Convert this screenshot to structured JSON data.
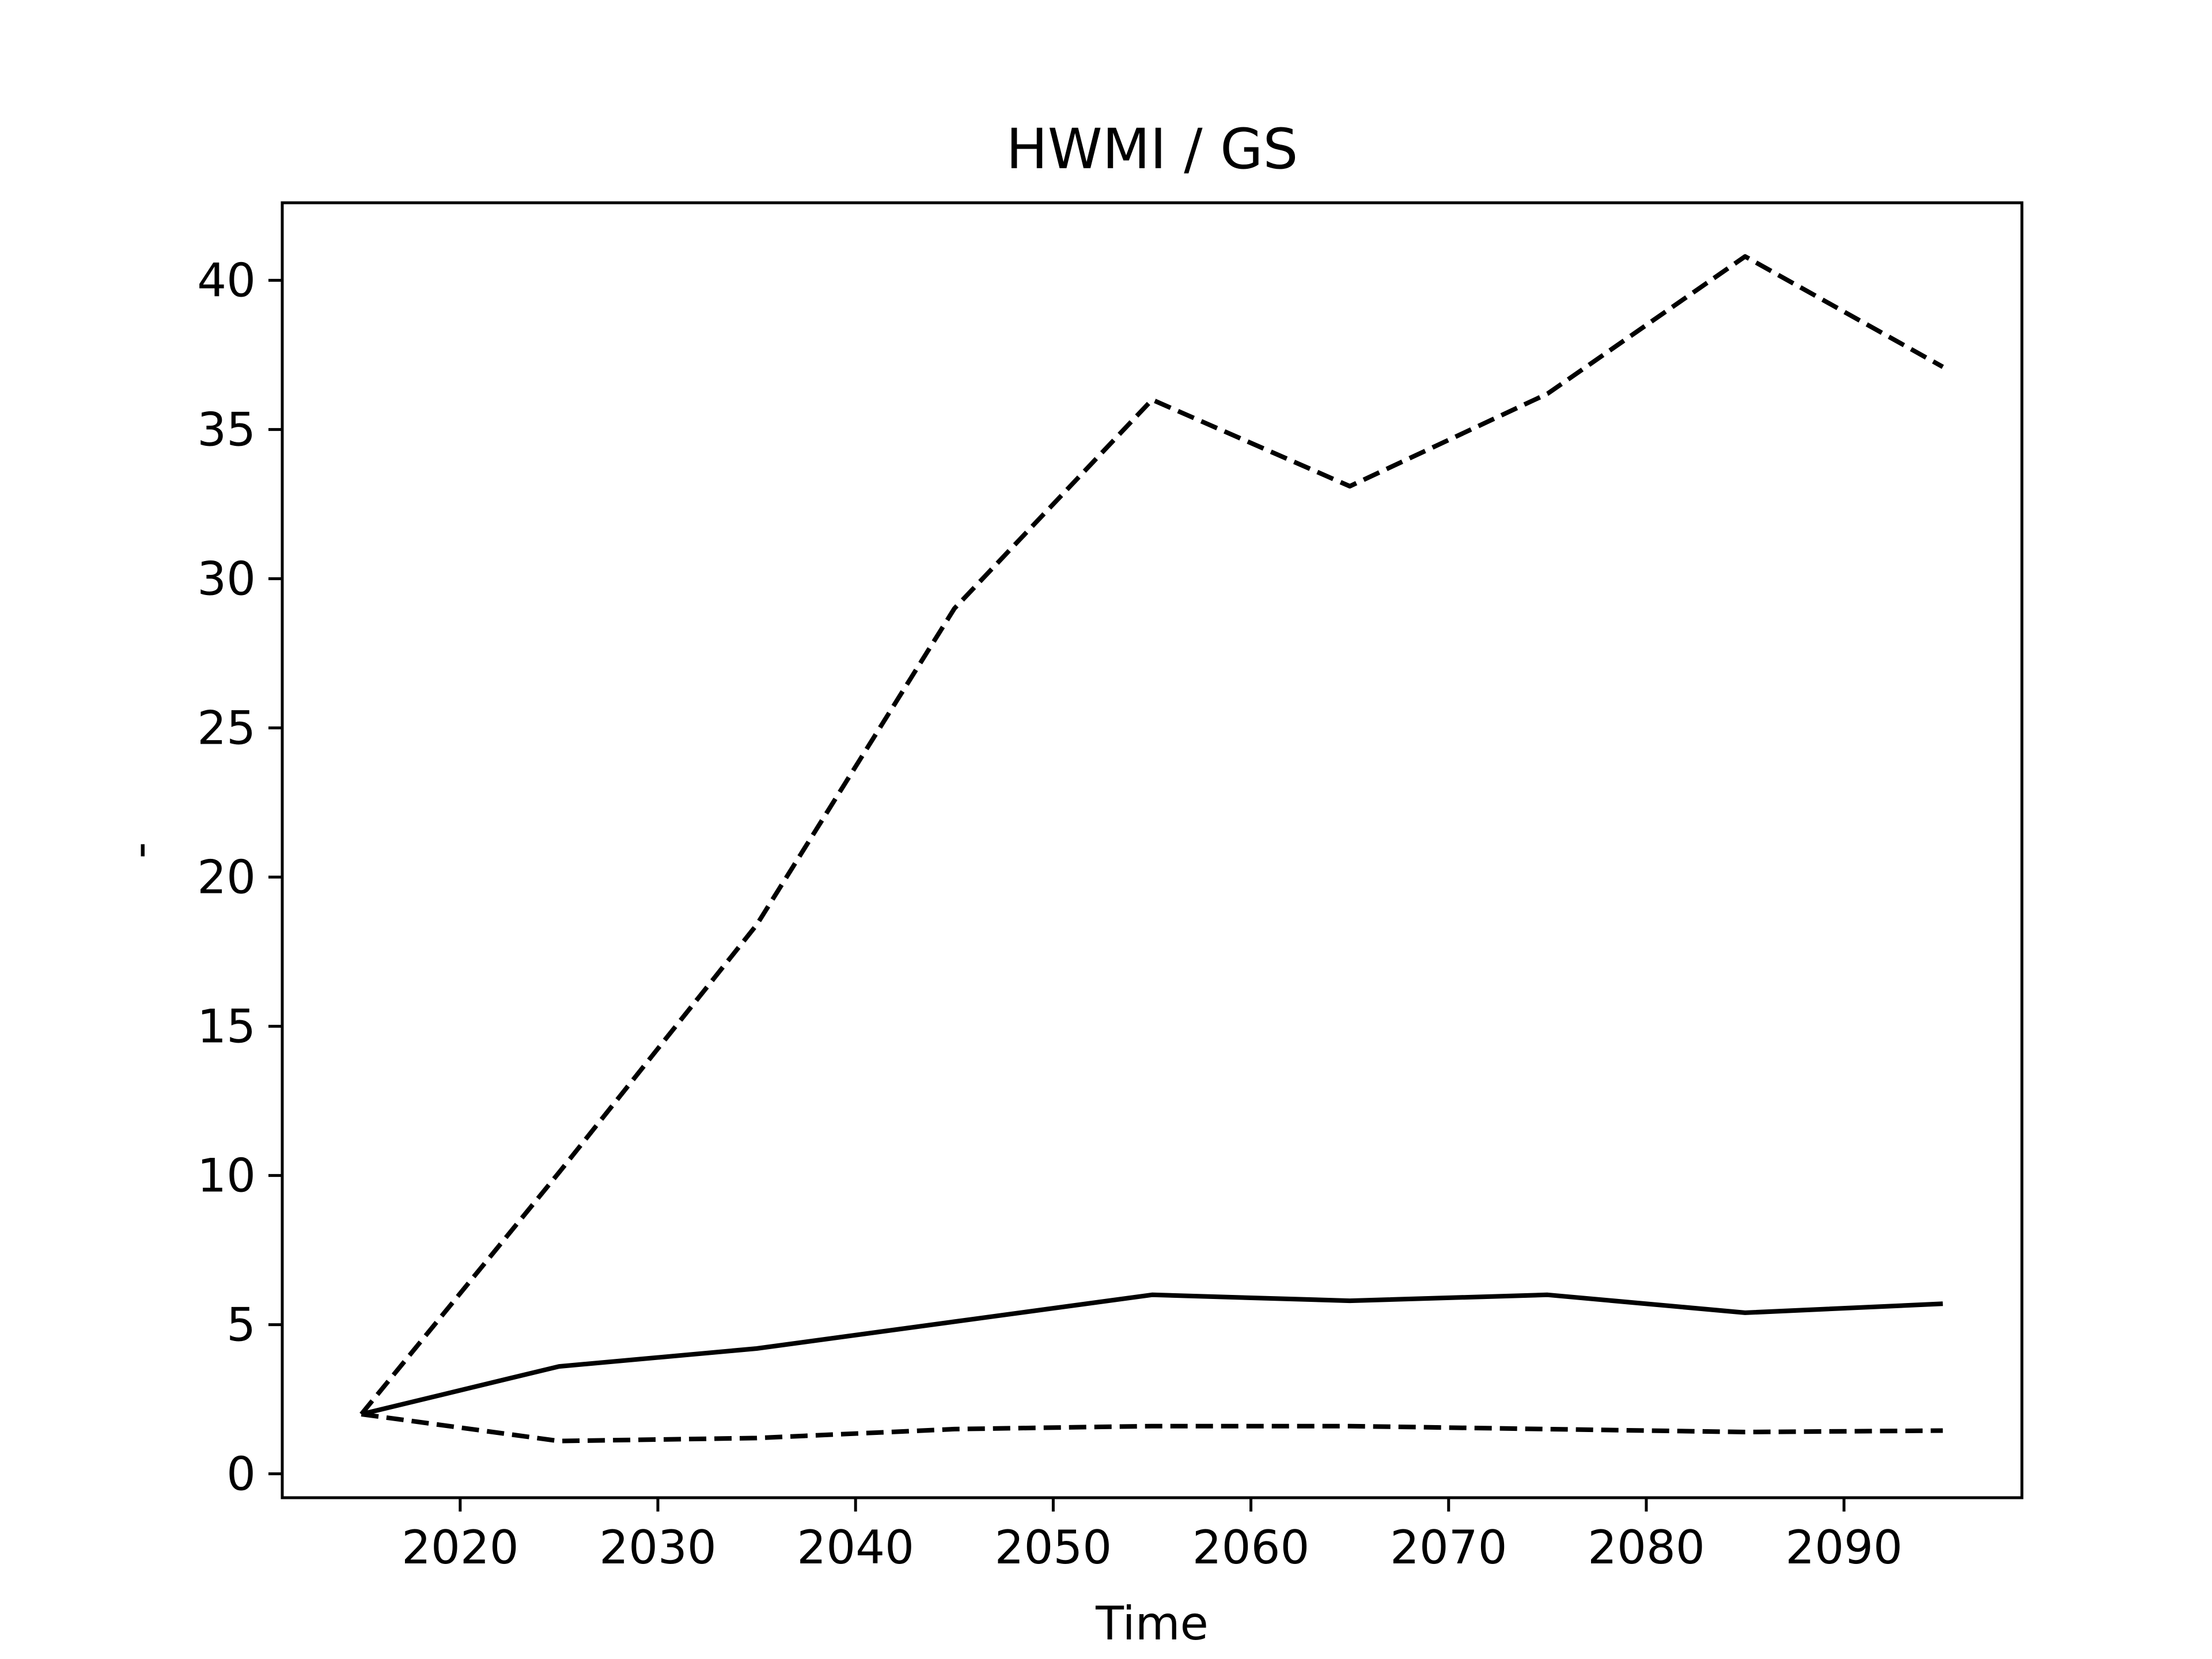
{
  "chart_data": {
    "type": "line",
    "title": "HWMI / GS",
    "xlabel": "Time",
    "ylabel": "-",
    "x": [
      2015,
      2025,
      2035,
      2045,
      2055,
      2065,
      2075,
      2085,
      2095
    ],
    "series": [
      {
        "style": "solid",
        "color": "#000000",
        "values": [
          2.0,
          3.6,
          4.2,
          5.1,
          6.0,
          5.8,
          6.0,
          5.4,
          5.7
        ]
      },
      {
        "style": "dashed",
        "color": "#000000",
        "values": [
          2.0,
          10.1,
          18.4,
          29.0,
          36.0,
          33.1,
          36.2,
          40.8,
          37.1
        ]
      },
      {
        "style": "dashed",
        "color": "#000000",
        "values": [
          2.0,
          1.1,
          1.2,
          1.5,
          1.6,
          1.6,
          1.5,
          1.4,
          1.45
        ]
      }
    ],
    "xlim": [
      2011,
      2099
    ],
    "ylim": [
      -0.8,
      42.6
    ],
    "xticks": [
      2020,
      2030,
      2040,
      2050,
      2060,
      2070,
      2080,
      2090
    ],
    "yticks": [
      0,
      5,
      10,
      15,
      20,
      25,
      30,
      35,
      40
    ],
    "grid": false,
    "legend": "none"
  }
}
